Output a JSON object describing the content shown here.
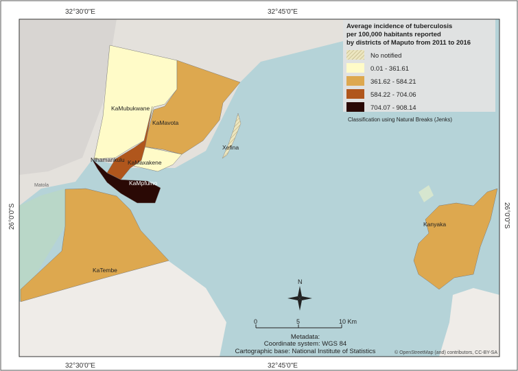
{
  "coordinates": {
    "top": [
      "32°30'0\"E",
      "32°45'0\"E"
    ],
    "bottom": [
      "32°30'0\"E",
      "32°45'0\"E"
    ],
    "left": "26°0'0\"S",
    "right": "26°0'0\"S"
  },
  "legend": {
    "title": [
      "Average incidence of tuberculosis",
      "per 100,000 habitants reported",
      "by districts of Maputo from 2011 to 2016"
    ],
    "items": [
      {
        "label": "No notified",
        "color": "#ece6c0"
      },
      {
        "label": "0.01 - 361.61",
        "color": "#fffbc8"
      },
      {
        "label": "361.62 - 584.21",
        "color": "#dda84f"
      },
      {
        "label": "584.22 - 704.06",
        "color": "#b0561c"
      },
      {
        "label": "704.07 - 908.14",
        "color": "#2a0905"
      }
    ],
    "note": "Classification using Natural Breaks (Jenks)"
  },
  "districts": [
    {
      "name": "KaMubukwane"
    },
    {
      "name": "KaMavota"
    },
    {
      "name": "Xefina"
    },
    {
      "name": "Nlhamankulu"
    },
    {
      "name": "KaMaxakene"
    },
    {
      "name": "KaMpfumo"
    },
    {
      "name": "KaTembe"
    },
    {
      "name": "Kanyaka"
    }
  ],
  "places": [
    "Matola"
  ],
  "north": "N",
  "scale": [
    "0",
    "5",
    "10 Km"
  ],
  "metadata": [
    "Metadata:",
    "Coordinate system: WGS 84",
    "Cartographic base: National Institute of Statistics"
  ],
  "attribution": "© OpenStreetMap (and) contributors, CC-BY-SA"
}
